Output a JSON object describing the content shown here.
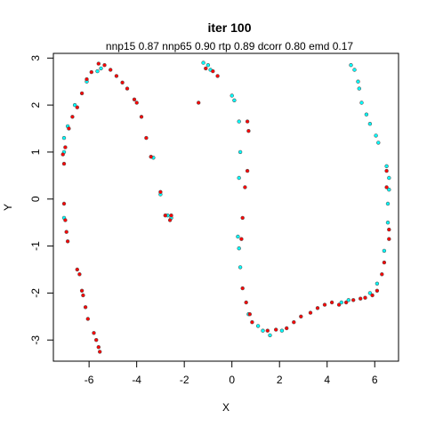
{
  "chart_data": {
    "type": "scatter",
    "title": "iter 100",
    "subtitle": "nnp15 0.87 nnp65 0.90 rtp 0.89 dcorr 0.80 emd 0.17",
    "xlabel": "X",
    "ylabel": "Y",
    "xlim": [
      -7.5,
      7.0
    ],
    "ylim": [
      -3.45,
      3.1
    ],
    "xticks": [
      -6,
      -4,
      -2,
      0,
      2,
      4,
      6
    ],
    "yticks": [
      -3,
      -2,
      -1,
      0,
      1,
      2,
      3
    ],
    "colors": {
      "red": "#ff0000",
      "cyan": "#00ffff",
      "outline": "#555555"
    },
    "series": [
      {
        "color": "cyan",
        "points": [
          [
            -5.5,
            2.78
          ],
          [
            -5.65,
            2.72
          ],
          [
            -6.1,
            2.5
          ],
          [
            -6.6,
            2.0
          ],
          [
            -6.9,
            1.55
          ],
          [
            -7.05,
            1.3
          ],
          [
            -7.05,
            1.0
          ],
          [
            -7.05,
            -0.4
          ],
          [
            -3.3,
            0.88
          ],
          [
            -3.0,
            0.1
          ],
          [
            -2.7,
            -0.35
          ],
          [
            -2.55,
            -0.4
          ],
          [
            -1.2,
            2.9
          ],
          [
            -1.0,
            2.85
          ],
          [
            -0.9,
            2.75
          ],
          [
            0.0,
            2.2
          ],
          [
            0.1,
            2.1
          ],
          [
            0.3,
            1.65
          ],
          [
            0.35,
            1.0
          ],
          [
            0.3,
            0.45
          ],
          [
            0.25,
            -0.8
          ],
          [
            0.3,
            -1.05
          ],
          [
            0.35,
            -1.45
          ],
          [
            0.7,
            -2.45
          ],
          [
            1.1,
            -2.7
          ],
          [
            1.3,
            -2.8
          ],
          [
            1.6,
            -2.9
          ],
          [
            2.1,
            -2.8
          ],
          [
            4.6,
            -2.2
          ],
          [
            4.9,
            -2.15
          ],
          [
            5.0,
            2.85
          ],
          [
            5.15,
            2.75
          ],
          [
            5.3,
            2.5
          ],
          [
            5.35,
            2.35
          ],
          [
            5.45,
            2.05
          ],
          [
            5.65,
            1.8
          ],
          [
            5.8,
            1.6
          ],
          [
            6.05,
            1.35
          ],
          [
            6.15,
            1.2
          ],
          [
            6.5,
            0.7
          ],
          [
            6.6,
            0.45
          ],
          [
            6.6,
            0.2
          ],
          [
            6.55,
            -0.1
          ],
          [
            6.55,
            -0.5
          ],
          [
            6.4,
            -1.1
          ],
          [
            6.1,
            -1.8
          ],
          [
            5.8,
            -2.0
          ]
        ]
      },
      {
        "color": "red",
        "points": [
          [
            -5.6,
            2.88
          ],
          [
            -5.35,
            2.85
          ],
          [
            -5.1,
            2.75
          ],
          [
            -4.85,
            2.62
          ],
          [
            -4.6,
            2.48
          ],
          [
            -4.4,
            2.35
          ],
          [
            -4.1,
            2.12
          ],
          [
            -4.0,
            2.05
          ],
          [
            -3.8,
            1.75
          ],
          [
            -3.6,
            1.3
          ],
          [
            -3.4,
            0.9
          ],
          [
            -3.0,
            0.15
          ],
          [
            -2.8,
            -0.35
          ],
          [
            -2.6,
            -0.45
          ],
          [
            -2.55,
            -0.35
          ],
          [
            -5.9,
            2.7
          ],
          [
            -6.1,
            2.55
          ],
          [
            -6.3,
            2.25
          ],
          [
            -6.5,
            1.95
          ],
          [
            -6.7,
            1.75
          ],
          [
            -6.85,
            1.5
          ],
          [
            -7.0,
            1.1
          ],
          [
            -7.1,
            0.95
          ],
          [
            -7.05,
            0.75
          ],
          [
            -7.05,
            -0.1
          ],
          [
            -7.0,
            -0.45
          ],
          [
            -6.95,
            -0.7
          ],
          [
            -6.9,
            -0.9
          ],
          [
            -6.5,
            -1.5
          ],
          [
            -6.4,
            -1.6
          ],
          [
            -6.3,
            -1.95
          ],
          [
            -6.25,
            -2.05
          ],
          [
            -6.15,
            -2.3
          ],
          [
            -6.05,
            -2.55
          ],
          [
            -5.8,
            -2.85
          ],
          [
            -5.7,
            -3.0
          ],
          [
            -5.6,
            -3.15
          ],
          [
            -5.55,
            -3.25
          ],
          [
            -1.4,
            2.05
          ],
          [
            -1.1,
            2.78
          ],
          [
            -0.8,
            2.72
          ],
          [
            -0.6,
            2.62
          ],
          [
            0.65,
            1.65
          ],
          [
            0.7,
            1.45
          ],
          [
            0.65,
            0.6
          ],
          [
            0.55,
            0.25
          ],
          [
            0.45,
            -0.4
          ],
          [
            0.4,
            -0.85
          ],
          [
            0.45,
            -1.9
          ],
          [
            0.6,
            -2.2
          ],
          [
            0.75,
            -2.45
          ],
          [
            0.85,
            -2.62
          ],
          [
            1.5,
            -2.8
          ],
          [
            1.85,
            -2.78
          ],
          [
            2.3,
            -2.75
          ],
          [
            2.6,
            -2.62
          ],
          [
            2.9,
            -2.5
          ],
          [
            3.3,
            -2.42
          ],
          [
            3.6,
            -2.32
          ],
          [
            3.9,
            -2.25
          ],
          [
            4.2,
            -2.2
          ],
          [
            4.5,
            -2.25
          ],
          [
            4.8,
            -2.2
          ],
          [
            5.1,
            -2.15
          ],
          [
            5.4,
            -2.12
          ],
          [
            5.6,
            -2.1
          ],
          [
            5.9,
            -2.05
          ],
          [
            6.1,
            -1.95
          ],
          [
            6.3,
            -1.6
          ],
          [
            6.4,
            -1.35
          ],
          [
            6.6,
            -0.65
          ],
          [
            6.6,
            -0.85
          ],
          [
            6.5,
            0.25
          ],
          [
            6.5,
            0.6
          ]
        ]
      }
    ]
  }
}
